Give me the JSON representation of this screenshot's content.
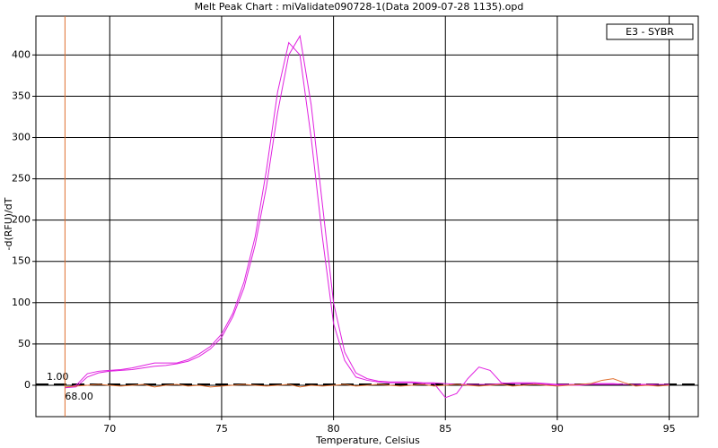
{
  "chart_data": {
    "type": "line",
    "title": "Melt Peak Chart : miValidate090728-1(Data 2009-07-28 1135).opd",
    "x_label": "Temperature, Celsius",
    "y_label": "-d(RFU)/dT",
    "legend": "E3 - SYBR",
    "x": [
      68,
      68.5,
      69,
      69.5,
      70,
      70.5,
      71,
      71.5,
      72,
      72.5,
      73,
      73.5,
      74,
      74.5,
      75,
      75.5,
      76,
      76.5,
      77,
      77.5,
      78,
      78.5,
      79,
      79.5,
      80,
      80.5,
      81,
      81.5,
      82,
      82.5,
      83,
      83.5,
      84,
      84.5,
      85,
      85.5,
      86,
      86.5,
      87,
      87.5,
      88,
      88.5,
      89,
      89.5,
      90,
      90.5,
      91,
      91.5,
      92,
      92.5,
      93,
      93.5,
      94,
      94.5,
      95
    ],
    "series": [
      {
        "color": "#e020e0",
        "values": [
          -3,
          0,
          14,
          17,
          18,
          19,
          21,
          24,
          27,
          27,
          27,
          31,
          38,
          47,
          62,
          87,
          125,
          180,
          260,
          355,
          415,
          400,
          300,
          180,
          75,
          30,
          10,
          6,
          4,
          3,
          3,
          3,
          2,
          2,
          -15,
          -10,
          8,
          22,
          18,
          3,
          2,
          2,
          2,
          1,
          0,
          0,
          0,
          1,
          1,
          1,
          1,
          1,
          0,
          1,
          1
        ]
      },
      {
        "color": "#e020e0",
        "values": [
          -3,
          -2,
          10,
          15,
          17,
          18,
          19,
          21,
          23,
          24,
          26,
          29,
          35,
          44,
          58,
          83,
          118,
          170,
          240,
          330,
          400,
          423,
          340,
          220,
          100,
          40,
          15,
          8,
          5,
          4,
          4,
          4,
          3,
          3,
          2,
          1,
          1,
          1,
          1,
          2,
          3,
          3,
          3,
          2,
          1,
          1,
          1,
          2,
          2,
          2,
          1,
          1,
          1,
          1,
          1
        ]
      },
      {
        "color": "#e07030",
        "values": [
          -2,
          -1,
          0,
          1,
          0,
          -1,
          0,
          1,
          -2,
          0,
          1,
          -1,
          0,
          -2,
          -1,
          0,
          1,
          0,
          -1,
          0,
          1,
          -2,
          0,
          -1,
          0,
          1,
          -1,
          0,
          1,
          0,
          -1,
          0,
          1,
          -1,
          0,
          1,
          0,
          -1,
          0,
          1,
          -1,
          0,
          1,
          0,
          -1,
          0,
          1,
          2,
          6,
          8,
          3,
          -1,
          0,
          -1,
          0
        ]
      }
    ],
    "threshold": {
      "value": 1,
      "label": "1.00"
    },
    "cursor": {
      "value": 68,
      "label": "68.00"
    },
    "xlim": [
      66.7,
      96.3
    ],
    "ylim": [
      -38,
      447
    ],
    "xticks": [
      70,
      75,
      80,
      85,
      90,
      95
    ],
    "yticks": [
      0,
      50,
      100,
      150,
      200,
      250,
      300,
      350,
      400
    ],
    "grid": true
  }
}
